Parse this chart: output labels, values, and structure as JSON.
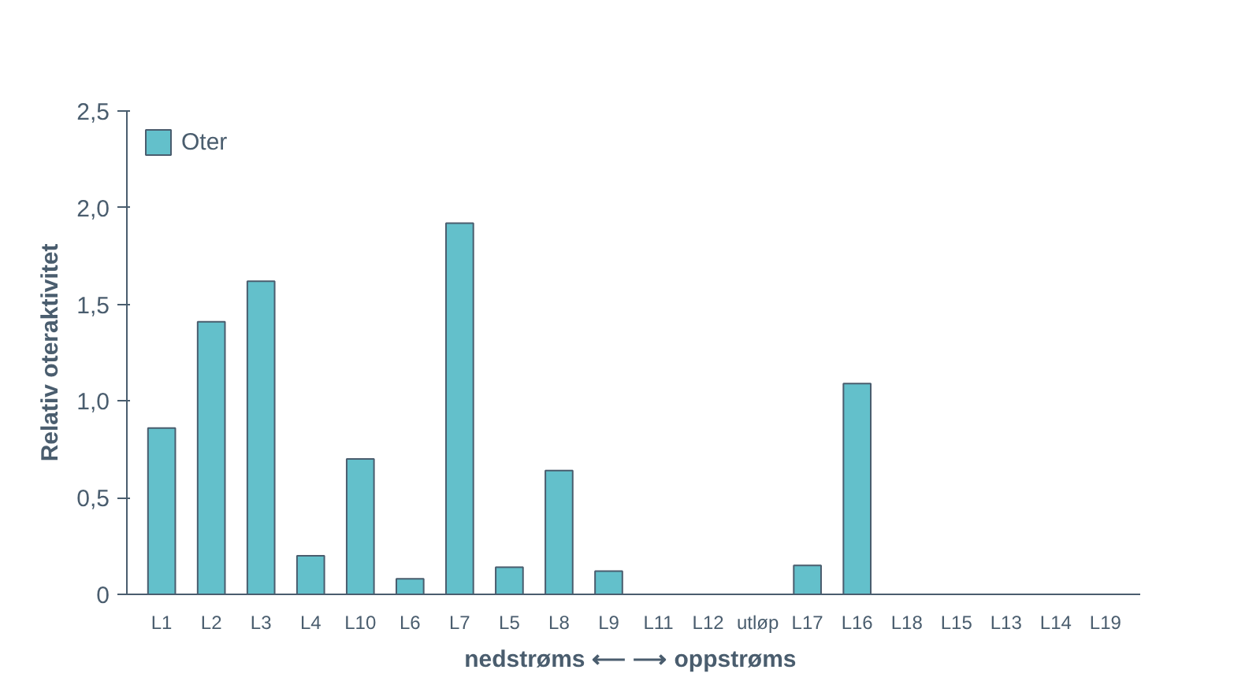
{
  "chart_data": {
    "type": "bar",
    "categories": [
      "L1",
      "L2",
      "L3",
      "L4",
      "L10",
      "L6",
      "L7",
      "L5",
      "L8",
      "L9",
      "L11",
      "L12",
      "utløp",
      "L17",
      "L16",
      "L18",
      "L15",
      "L13",
      "L14",
      "L19"
    ],
    "series": [
      {
        "name": "Oter",
        "color": "#63c0cb",
        "values": [
          0.86,
          1.41,
          1.62,
          0.2,
          0.7,
          0.08,
          1.92,
          0.14,
          0.64,
          0.12,
          0,
          0,
          0,
          0.15,
          1.09,
          0,
          0,
          0,
          0,
          0
        ]
      }
    ],
    "ylabel": "Relativ oteraktivitet",
    "xlabel": "nedstrøms ⟵  ⟶ oppstrøms",
    "ylim": [
      0,
      2.5
    ],
    "yticks": [
      {
        "value": 0,
        "label": "0"
      },
      {
        "value": 0.5,
        "label": "0,5"
      },
      {
        "value": 1,
        "label": "1,0"
      },
      {
        "value": 1.5,
        "label": "1,5"
      },
      {
        "value": 2,
        "label": "2,0"
      },
      {
        "value": 2.5,
        "label": "2,5"
      }
    ],
    "grid": false,
    "legend": "top left"
  }
}
